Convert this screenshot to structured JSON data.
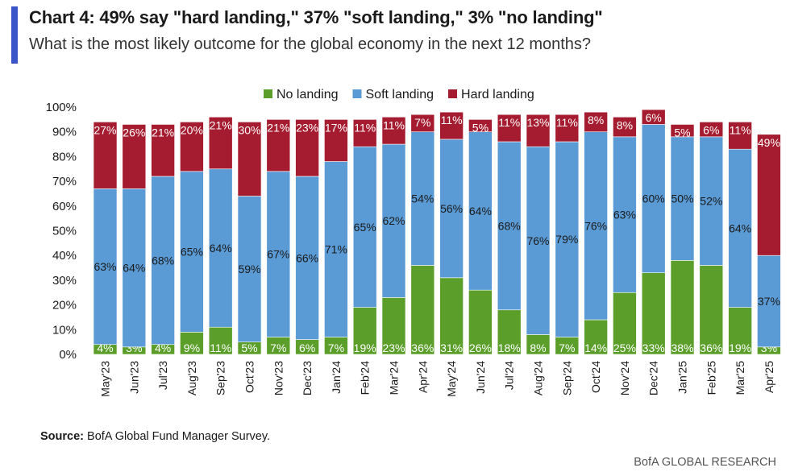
{
  "header": {
    "title": "Chart 4: 49% say \"hard landing,\" 37% \"soft landing,\" 3% \"no landing\"",
    "subtitle": "What is the most likely outcome for the global economy in the next 12 months?"
  },
  "footer": {
    "source_label": "Source:",
    "source_text": "BofA Global Fund Manager Survey.",
    "credit": "BofA GLOBAL RESEARCH"
  },
  "colors": {
    "no_landing": "#5b9f2a",
    "soft_landing": "#5b9bd5",
    "hard_landing": "#a51c30",
    "accent": "#3a55c8"
  },
  "chart_data": {
    "type": "bar",
    "stacked": true,
    "title": "Chart 4: 49% say \"hard landing,\" 37% \"soft landing,\" 3% \"no landing\"",
    "subtitle": "What is the most likely outcome for the global economy in the next 12 months?",
    "xlabel": "",
    "ylabel": "",
    "ylim": [
      0,
      100
    ],
    "yticks": [
      "0%",
      "10%",
      "20%",
      "30%",
      "40%",
      "50%",
      "60%",
      "70%",
      "80%",
      "90%",
      "100%"
    ],
    "legend_position": "top-center",
    "categories": [
      "May'23",
      "Jun'23",
      "Jul'23",
      "Aug'23",
      "Sep'23",
      "Oct'23",
      "Nov'23",
      "Dec'23",
      "Jan'24",
      "Feb'24",
      "Mar'24",
      "Apr'24",
      "May'24",
      "Jun'24",
      "Jul'24",
      "Aug'24",
      "Sep'24",
      "Oct'24",
      "Nov'24",
      "Dec'24",
      "Jan'25",
      "Feb'25",
      "Mar'25",
      "Apr'25"
    ],
    "series": [
      {
        "name": "No landing",
        "color": "#5b9f2a",
        "values": [
          4,
          3,
          4,
          9,
          11,
          5,
          7,
          6,
          7,
          19,
          23,
          36,
          31,
          26,
          18,
          8,
          7,
          14,
          25,
          33,
          38,
          36,
          19,
          3
        ]
      },
      {
        "name": "Soft landing",
        "color": "#5b9bd5",
        "values": [
          63,
          64,
          68,
          65,
          64,
          59,
          67,
          66,
          71,
          65,
          62,
          54,
          56,
          64,
          68,
          76,
          79,
          76,
          63,
          60,
          50,
          52,
          64,
          37
        ]
      },
      {
        "name": "Hard landing",
        "color": "#a51c30",
        "values": [
          27,
          26,
          21,
          20,
          21,
          30,
          21,
          23,
          17,
          11,
          11,
          7,
          11,
          5,
          11,
          13,
          11,
          8,
          8,
          6,
          5,
          6,
          11,
          49
        ]
      }
    ]
  }
}
